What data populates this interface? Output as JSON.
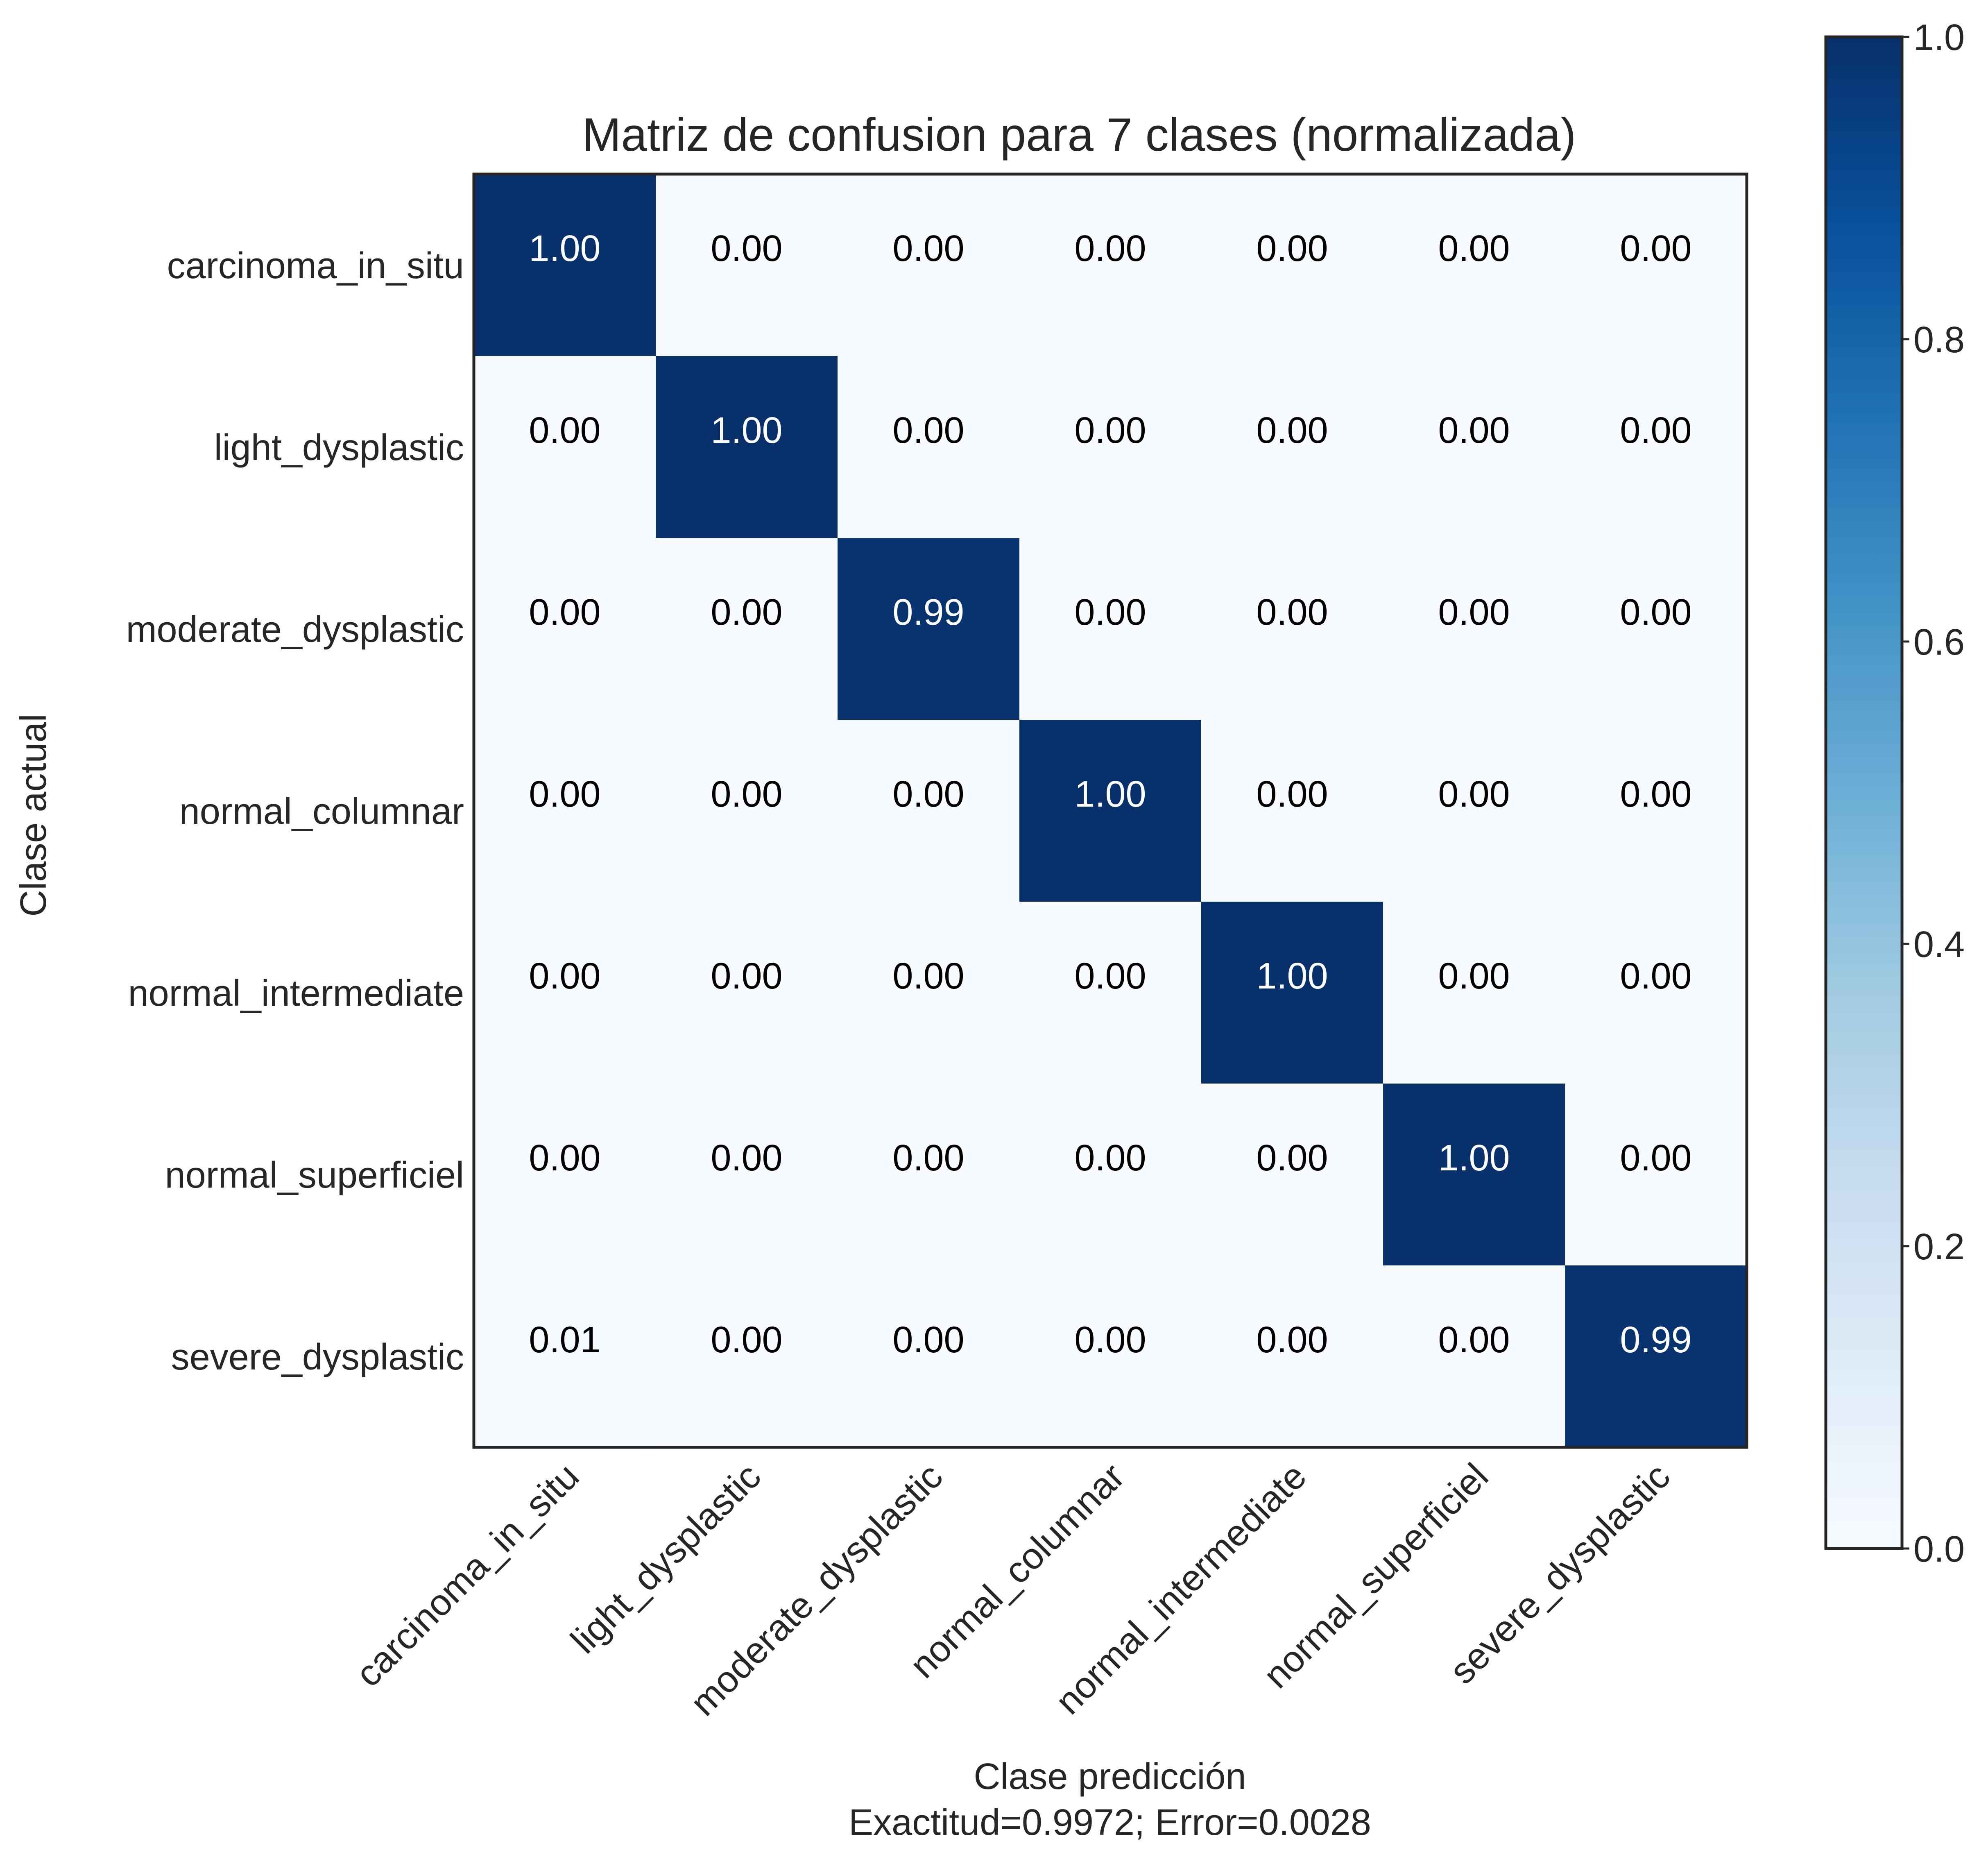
{
  "chart_data": {
    "type": "heatmap",
    "title": "Matriz de confusion para 7 clases (normalizada)",
    "xlabel": "Clase predicción",
    "xlabel_line2": "Exactitud=0.9972; Error=0.0028",
    "ylabel": "Clase actual",
    "x_categories": [
      "carcinoma_in_situ",
      "light_dysplastic",
      "moderate_dysplastic",
      "normal_columnar",
      "normal_intermediate",
      "normal_superficiel",
      "severe_dysplastic"
    ],
    "y_categories": [
      "carcinoma_in_situ",
      "light_dysplastic",
      "moderate_dysplastic",
      "normal_columnar",
      "normal_intermediate",
      "normal_superficiel",
      "severe_dysplastic"
    ],
    "values": [
      [
        1.0,
        0.0,
        0.0,
        0.0,
        0.0,
        0.0,
        0.0
      ],
      [
        0.0,
        1.0,
        0.0,
        0.0,
        0.0,
        0.0,
        0.0
      ],
      [
        0.0,
        0.0,
        0.99,
        0.0,
        0.0,
        0.0,
        0.0
      ],
      [
        0.0,
        0.0,
        0.0,
        1.0,
        0.0,
        0.0,
        0.0
      ],
      [
        0.0,
        0.0,
        0.0,
        0.0,
        1.0,
        0.0,
        0.0
      ],
      [
        0.0,
        0.0,
        0.0,
        0.0,
        0.0,
        1.0,
        0.0
      ],
      [
        0.01,
        0.0,
        0.0,
        0.0,
        0.0,
        0.0,
        0.99
      ]
    ],
    "colorbar": {
      "range": [
        0.0,
        1.0
      ],
      "ticks": [
        "0.0",
        "0.2",
        "0.4",
        "0.6",
        "0.8",
        "1.0"
      ],
      "colormap": "Blues",
      "low_color": "#f7fbff",
      "high_color": "#08306b"
    },
    "grid": false
  }
}
